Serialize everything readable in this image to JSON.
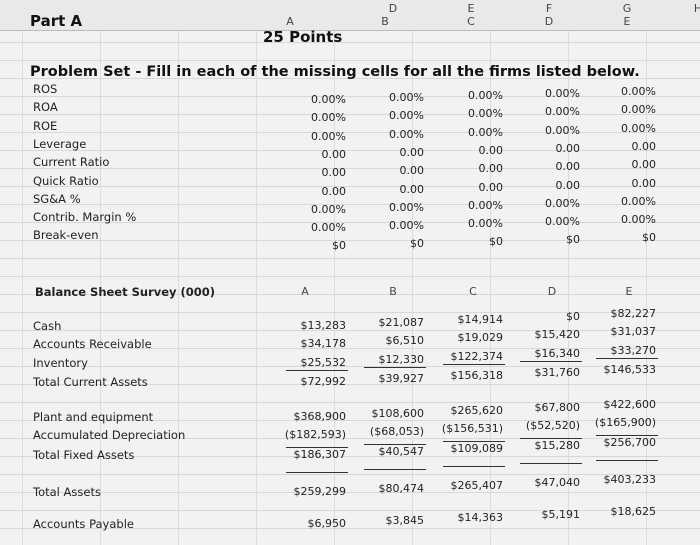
{
  "sheet_columns": [
    "D",
    "E",
    "F",
    "G",
    "H"
  ],
  "firm_columns": [
    "A",
    "B",
    "C",
    "D",
    "E"
  ],
  "header": {
    "part": "Part A",
    "points": "25 Points",
    "instructions": "Problem Set - Fill in each of the missing cells for all the firms listed below."
  },
  "ratios": {
    "rows": [
      {
        "label": "ROS",
        "values": [
          "0.00%",
          "0.00%",
          "0.00%",
          "0.00%",
          "0.00%"
        ]
      },
      {
        "label": "ROA",
        "values": [
          "0.00%",
          "0.00%",
          "0.00%",
          "0.00%",
          "0.00%"
        ]
      },
      {
        "label": "ROE",
        "values": [
          "0.00%",
          "0.00%",
          "0.00%",
          "0.00%",
          "0.00%"
        ]
      },
      {
        "label": "Leverage",
        "values": [
          "0.00",
          "0.00",
          "0.00",
          "0.00",
          "0.00"
        ]
      },
      {
        "label": "Current Ratio",
        "values": [
          "0.00",
          "0.00",
          "0.00",
          "0.00",
          "0.00"
        ]
      },
      {
        "label": "Quick Ratio",
        "values": [
          "0.00",
          "0.00",
          "0.00",
          "0.00",
          "0.00"
        ]
      },
      {
        "label": "SG&A %",
        "values": [
          "0.00%",
          "0.00%",
          "0.00%",
          "0.00%",
          "0.00%"
        ]
      },
      {
        "label": "Contrib. Margin %",
        "values": [
          "0.00%",
          "0.00%",
          "0.00%",
          "0.00%",
          "0.00%"
        ]
      },
      {
        "label": "Break-even",
        "values": [
          "$0",
          "$0",
          "$0",
          "$0",
          "$0"
        ]
      }
    ]
  },
  "balance_sheet": {
    "title": "Balance Sheet Survey (000)",
    "columns": [
      "A",
      "B",
      "C",
      "D",
      "E"
    ],
    "rows": [
      {
        "label": "Cash",
        "values": [
          "$13,283",
          "$21,087",
          "$14,914",
          "$0",
          "$82,227"
        ]
      },
      {
        "label": "Accounts Receivable",
        "values": [
          "$34,178",
          "$6,510",
          "$19,029",
          "$15,420",
          "$31,037"
        ]
      },
      {
        "label": "Inventory",
        "values": [
          "$25,532",
          "$12,330",
          "$122,374",
          "$16,340",
          "$33,270"
        ]
      },
      {
        "label": "Total Current Assets",
        "values": [
          "$72,992",
          "$39,927",
          "$156,318",
          "$31,760",
          "$146,533"
        ]
      },
      {
        "label": "Plant and equipment",
        "values": [
          "$368,900",
          "$108,600",
          "$265,620",
          "$67,800",
          "$422,600"
        ]
      },
      {
        "label": "Accumulated Depreciation",
        "values": [
          "($182,593)",
          "($68,053)",
          "($156,531)",
          "($52,520)",
          "($165,900)"
        ]
      },
      {
        "label": "Total Fixed Assets",
        "values": [
          "$186,307",
          "$40,547",
          "$109,089",
          "$15,280",
          "$256,700"
        ]
      },
      {
        "label": "Total Assets",
        "values": [
          "$259,299",
          "$80,474",
          "$265,407",
          "$47,040",
          "$403,233"
        ]
      },
      {
        "label": "Accounts Payable",
        "values": [
          "$6,950",
          "$3,845",
          "$14,363",
          "$5,191",
          "$18,625"
        ]
      }
    ]
  }
}
